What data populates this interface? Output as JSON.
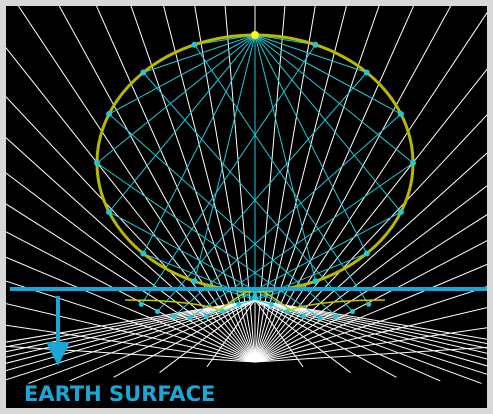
{
  "label": "EARTH SURFACE"
}
